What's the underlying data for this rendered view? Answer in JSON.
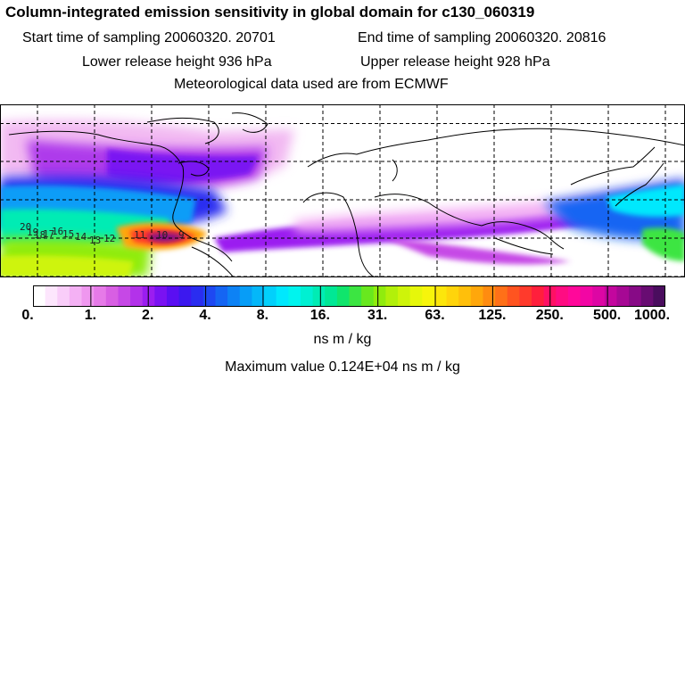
{
  "header": {
    "title": "Column-integrated emission sensitivity in global domain for c130_060319",
    "start_label": "Start time of sampling 20060320. 20701",
    "end_label": "End time of sampling 20060320. 20816",
    "lower_label": "Lower release height  936 hPa",
    "upper_label": "Upper release height  928 hPa",
    "met_label": "Meteorological data used are from ECMWF"
  },
  "map": {
    "track_labels": [
      "20",
      "19",
      "18",
      "17",
      "16",
      "15",
      "14",
      "13",
      "12",
      "11",
      "10",
      "9"
    ],
    "grid_color": "#000000"
  },
  "colorbar": {
    "ticks": [
      "0.",
      "1.",
      "2.",
      "4.",
      "8.",
      "16.",
      "31.",
      "63.",
      "125.",
      "250.",
      "500.",
      "1000."
    ],
    "colors": [
      "#ffffff",
      "#fde6fd",
      "#f9cdf9",
      "#f4b1f4",
      "#ef97ef",
      "#e67ae8",
      "#d85fe3",
      "#c648e6",
      "#b332ea",
      "#9b1df0",
      "#7a12f2",
      "#5a0ff2",
      "#3c18ef",
      "#2a2df0",
      "#1e48f2",
      "#1565f3",
      "#0d82f5",
      "#079df7",
      "#04b7f9",
      "#02d0fb",
      "#00e8fd",
      "#00f4ee",
      "#00f0d2",
      "#00ecb4",
      "#00e895",
      "#10e56c",
      "#3ce542",
      "#68e81e",
      "#90ec0d",
      "#b2f00a",
      "#cef40a",
      "#e6f70a",
      "#f7f50b",
      "#fce60b",
      "#ffd40b",
      "#ffbf0b",
      "#ffa70b",
      "#ff8c10",
      "#ff7018",
      "#ff5420",
      "#ff3a2c",
      "#ff1f3c",
      "#ff1064",
      "#ff0c82",
      "#ff089a",
      "#f206a4",
      "#dd06a4",
      "#c3069e",
      "#a60894",
      "#870a86",
      "#680c72",
      "#4a0d5e"
    ],
    "units": "ns m / kg"
  },
  "stats": {
    "max_label": "Maximum value  0.124E+04 ns m / kg"
  }
}
